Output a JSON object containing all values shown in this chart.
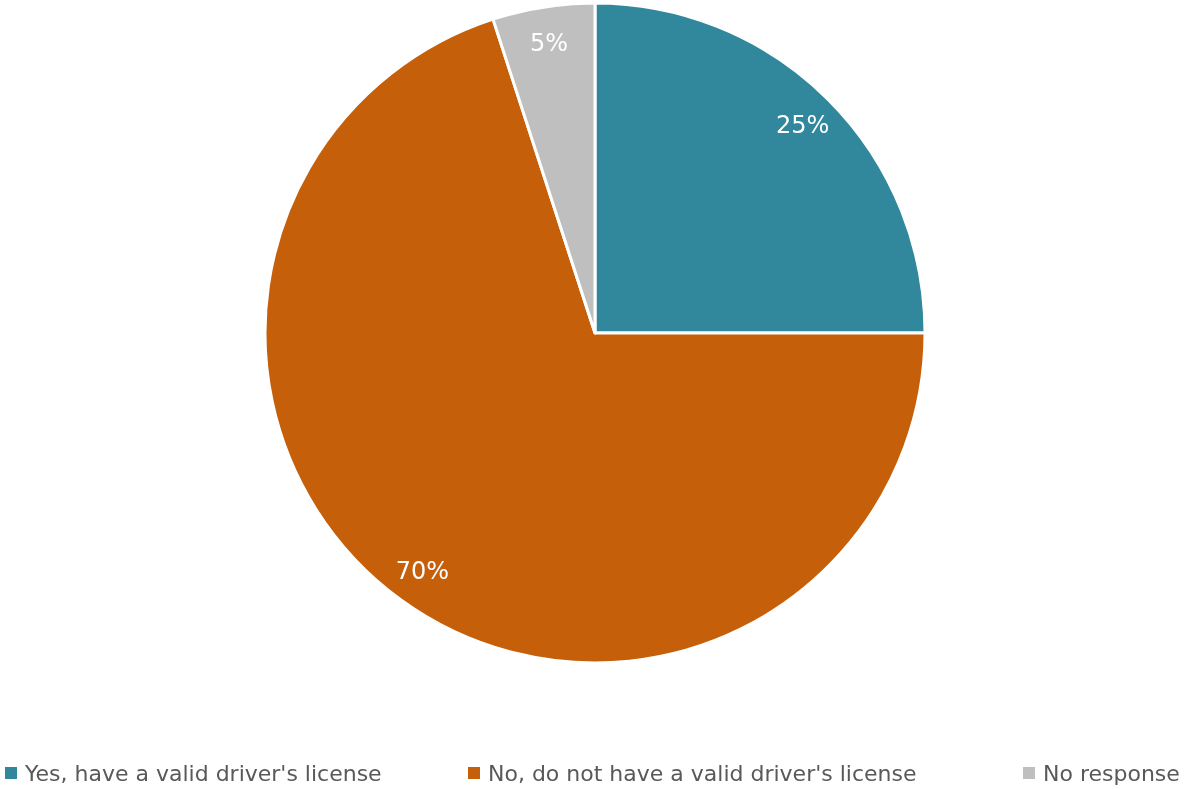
{
  "chart_data": {
    "type": "pie",
    "categories": [
      "Yes, have a valid driver's license",
      "No, do not have a valid driver's license",
      "No response"
    ],
    "values": [
      25,
      70,
      5
    ],
    "colors": [
      "#31879b",
      "#c55f09",
      "#bfbfbf"
    ],
    "value_labels": [
      "25%",
      "70%",
      "5%"
    ],
    "legend": "bottom"
  }
}
